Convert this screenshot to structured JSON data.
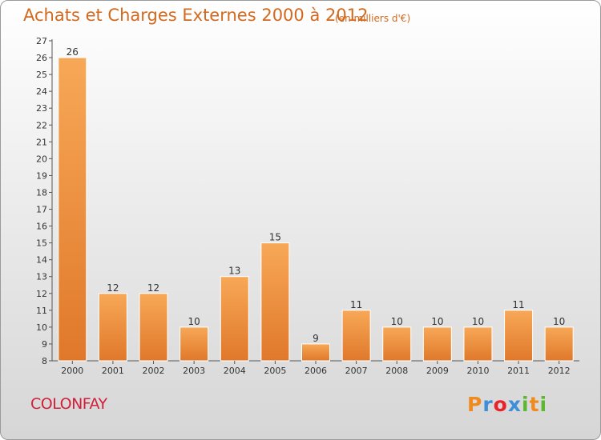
{
  "header": {
    "title": "Achats et Charges Externes 2000 à 2012",
    "unit": "(en milliers d'€)"
  },
  "footer": {
    "commune": "COLONFAY",
    "brand_letters": [
      "P",
      "r",
      "o",
      "x",
      "i",
      "t",
      "i"
    ],
    "brand_colors": [
      "#f08a1c",
      "#3c8fd8",
      "#e8232a",
      "#3c8fd8",
      "#5cb82e",
      "#f08a1c",
      "#5cb82e"
    ]
  },
  "colors": {
    "bar_light": "#f7a857",
    "bar_dark": "#e0782a",
    "title": "#d2691e",
    "commune": "#d0203a"
  },
  "chart_data": {
    "type": "bar",
    "title": "Achats et Charges Externes 2000 à 2012",
    "subtitle": "(en milliers d'€)",
    "categories": [
      "2000",
      "2001",
      "2002",
      "2003",
      "2004",
      "2005",
      "2006",
      "2007",
      "2008",
      "2009",
      "2010",
      "2011",
      "2012"
    ],
    "values": [
      26,
      12,
      12,
      10,
      13,
      15,
      9,
      11,
      10,
      10,
      10,
      11,
      10
    ],
    "ylim": [
      8,
      27
    ],
    "yticks": [
      8,
      9,
      10,
      11,
      12,
      13,
      14,
      15,
      16,
      17,
      18,
      19,
      20,
      21,
      22,
      23,
      24,
      25,
      26,
      27
    ],
    "grid": false,
    "legend": "none"
  }
}
